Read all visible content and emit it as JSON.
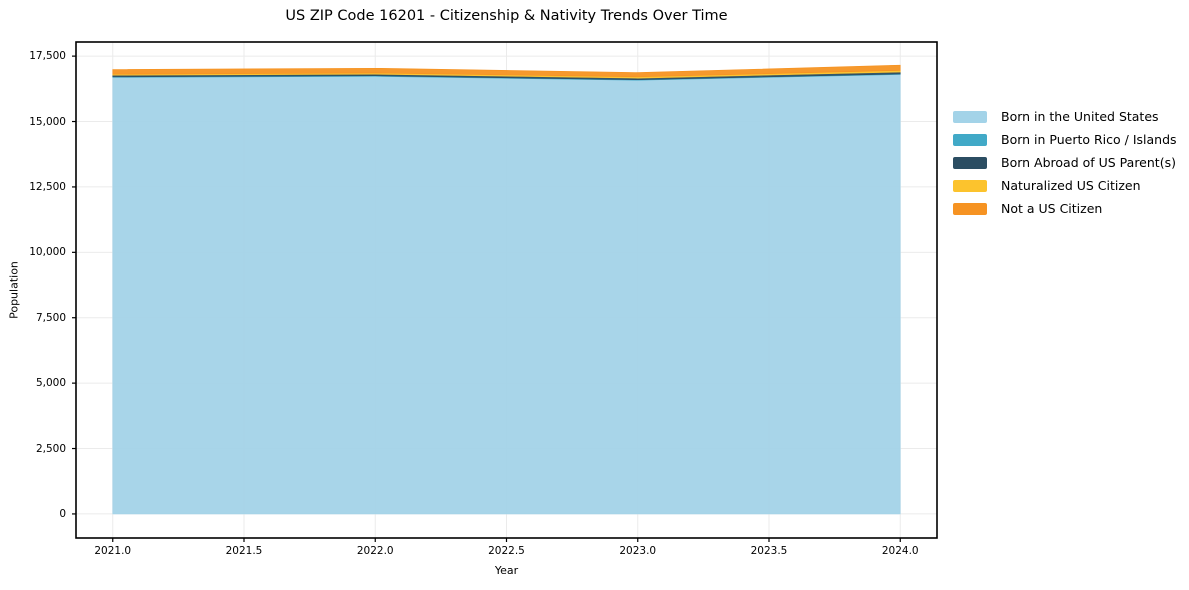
{
  "title": "US ZIP Code 16201 - Citizenship & Nativity Trends Over Time",
  "axes": {
    "xlabel": "Year",
    "ylabel": "Population"
  },
  "chart_data": {
    "type": "area",
    "stacked": true,
    "title": "US ZIP Code 16201 - Citizenship & Nativity Trends Over Time",
    "xlabel": "Year",
    "ylabel": "Population",
    "x": [
      2021,
      2022,
      2023,
      2024
    ],
    "series": [
      {
        "name": "Born in the United States",
        "color": "#A3D3E8",
        "values": [
          16690,
          16730,
          16580,
          16800
        ]
      },
      {
        "name": "Born in Puerto Rico / Islands",
        "color": "#41A9C7",
        "values": [
          20,
          20,
          20,
          20
        ]
      },
      {
        "name": "Born Abroad of US Parent(s)",
        "color": "#2B4D62",
        "values": [
          60,
          60,
          60,
          75
        ]
      },
      {
        "name": "Naturalized US Citizen",
        "color": "#FCC32D",
        "values": [
          40,
          45,
          50,
          60
        ]
      },
      {
        "name": "Not a US Citizen",
        "color": "#F69322",
        "values": [
          175,
          180,
          160,
          200
        ]
      }
    ],
    "xlim": [
      2020.86,
      2024.14
    ],
    "ylim": [
      -920,
      18040
    ],
    "xticks": {
      "values": [
        2021.0,
        2021.5,
        2022.0,
        2022.5,
        2023.0,
        2023.5,
        2024.0
      ],
      "labels": [
        "2021.0",
        "2021.5",
        "2022.0",
        "2022.5",
        "2023.0",
        "2023.5",
        "2024.0"
      ]
    },
    "yticks": {
      "values": [
        0,
        2500,
        5000,
        7500,
        10000,
        12500,
        15000,
        17500
      ],
      "labels": [
        "0",
        "2,500",
        "5,000",
        "7,500",
        "10,000",
        "12,500",
        "15,000",
        "17,500"
      ]
    },
    "grid": true,
    "legend_position": "outside-right",
    "colors": {
      "background": "#ffffff",
      "gridline": "#ebebeb",
      "spine": "#000000",
      "tick": "#000000"
    }
  }
}
